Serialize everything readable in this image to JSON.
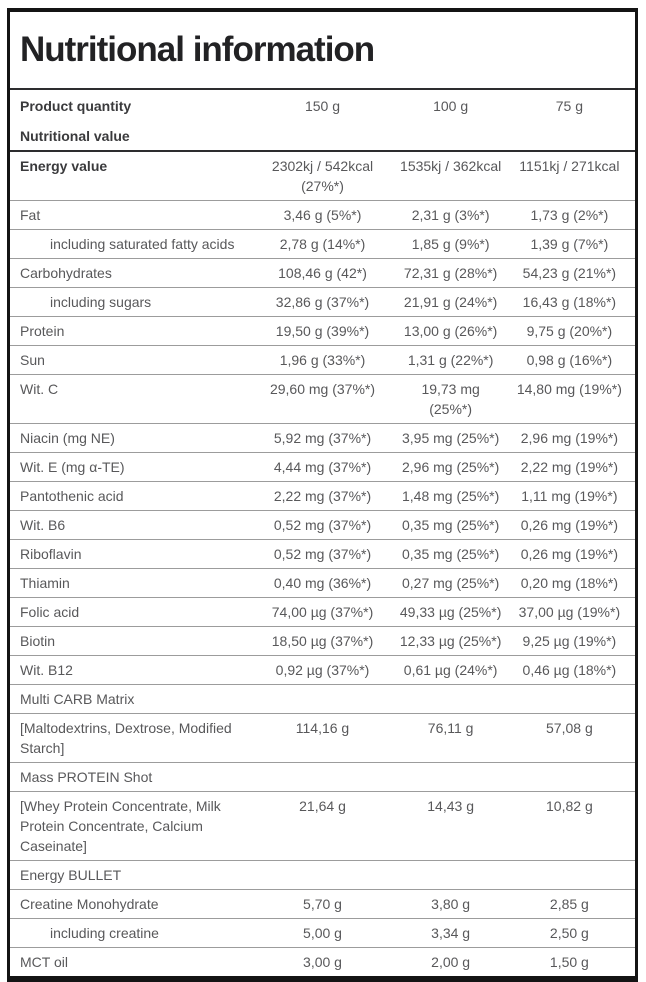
{
  "panel": {
    "title": "Nutritional information"
  },
  "colors": {
    "outer_border": "#141414",
    "divider_dark": "#2d2d2f",
    "divider_light": "#9c9c9c",
    "text_bold": "#3a3a3c",
    "text_regular": "#58585a"
  },
  "table": {
    "column_header": {
      "label": "Product quantity",
      "values": [
        "150 g",
        "100 g",
        "75 g"
      ]
    },
    "rows": [
      {
        "style": "header",
        "label": "Nutritional value",
        "values": null
      },
      {
        "style": "bold",
        "label": "Energy value",
        "values": [
          "2302kj / 542kcal (27%*)",
          "1535kj / 362kcal",
          "1151kj / 271kcal"
        ]
      },
      {
        "style": "normal",
        "label": "Fat",
        "values": [
          "3,46 g (5%*)",
          "2,31 g (3%*)",
          "1,73 g (2%*)"
        ]
      },
      {
        "style": "normal",
        "indent": true,
        "label": "including saturated fatty acids",
        "values": [
          "2,78 g (14%*)",
          "1,85 g (9%*)",
          "1,39 g (7%*)"
        ]
      },
      {
        "style": "normal",
        "label": "Carbohydrates",
        "values": [
          "108,46 g (42*)",
          "72,31 g (28%*)",
          "54,23 g (21%*)"
        ]
      },
      {
        "style": "normal",
        "indent": true,
        "label": "including sugars",
        "values": [
          "32,86 g (37%*)",
          "21,91 g (24%*)",
          "16,43 g (18%*)"
        ]
      },
      {
        "style": "normal",
        "label": "Protein",
        "values": [
          "19,50 g (39%*)",
          "13,00 g (26%*)",
          "9,75 g (20%*)"
        ]
      },
      {
        "style": "normal",
        "label": "Sun",
        "values": [
          "1,96 g (33%*)",
          "1,31 g (22%*)",
          "0,98 g (16%*)"
        ]
      },
      {
        "style": "normal",
        "label": "Wit. C",
        "values": [
          "29,60 mg (37%*)",
          "19,73 mg (25%*)",
          "14,80 mg (19%*)"
        ]
      },
      {
        "style": "normal",
        "label": "Niacin (mg NE)",
        "values": [
          "5,92 mg (37%*)",
          "3,95 mg (25%*)",
          "2,96 mg (19%*)"
        ]
      },
      {
        "style": "normal",
        "label": "Wit. E (mg α-TE)",
        "values": [
          "4,44 mg (37%*)",
          "2,96 mg (25%*)",
          "2,22 mg (19%*)"
        ]
      },
      {
        "style": "normal",
        "label": "Pantothenic acid",
        "values": [
          "2,22 mg (37%*)",
          "1,48 mg (25%*)",
          "1,11 mg (19%*)"
        ]
      },
      {
        "style": "normal",
        "label": "Wit. B6",
        "values": [
          "0,52 mg (37%*)",
          "0,35 mg (25%*)",
          "0,26 mg (19%*)"
        ]
      },
      {
        "style": "normal",
        "label": "Riboflavin",
        "values": [
          "0,52 mg (37%*)",
          "0,35 mg (25%*)",
          "0,26 mg (19%*)"
        ]
      },
      {
        "style": "normal",
        "label": "Thiamin",
        "values": [
          "0,40 mg (36%*)",
          "0,27 mg (25%*)",
          "0,20 mg (18%*)"
        ]
      },
      {
        "style": "normal",
        "label": "Folic acid",
        "values": [
          "74,00 µg (37%*)",
          "49,33 µg (25%*)",
          "37,00 µg (19%*)"
        ]
      },
      {
        "style": "normal",
        "label": "Biotin",
        "values": [
          "18,50 µg (37%*)",
          "12,33 µg (25%*)",
          "9,25 µg (19%*)"
        ]
      },
      {
        "style": "normal",
        "label": "Wit. B12",
        "values": [
          "0,92 µg (37%*)",
          "0,61 µg (24%*)",
          "0,46 µg (18%*)"
        ]
      },
      {
        "style": "section",
        "label": "Multi CARB Matrix",
        "values": null
      },
      {
        "style": "normal",
        "label": "[Maltodextrins, Dextrose, Modified Starch]",
        "values": [
          "114,16 g",
          "76,11 g",
          "57,08 g"
        ]
      },
      {
        "style": "section",
        "label": "Mass PROTEIN Shot",
        "values": null
      },
      {
        "style": "normal",
        "label": "[Whey Protein Concentrate, Milk Protein Concentrate, Calcium Caseinate]",
        "values": [
          "21,64 g",
          "14,43 g",
          "10,82 g"
        ]
      },
      {
        "style": "section",
        "label": "Energy BULLET",
        "values": null
      },
      {
        "style": "normal",
        "label": "Creatine Monohydrate",
        "values": [
          "5,70 g",
          "3,80 g",
          "2,85 g"
        ]
      },
      {
        "style": "normal",
        "indent": true,
        "label": "including creatine",
        "values": [
          "5,00 g",
          "3,34 g",
          "2,50 g"
        ]
      },
      {
        "style": "normal",
        "label": "MCT oil",
        "values": [
          "3,00 g",
          "2,00 g",
          "1,50 g"
        ]
      }
    ]
  }
}
